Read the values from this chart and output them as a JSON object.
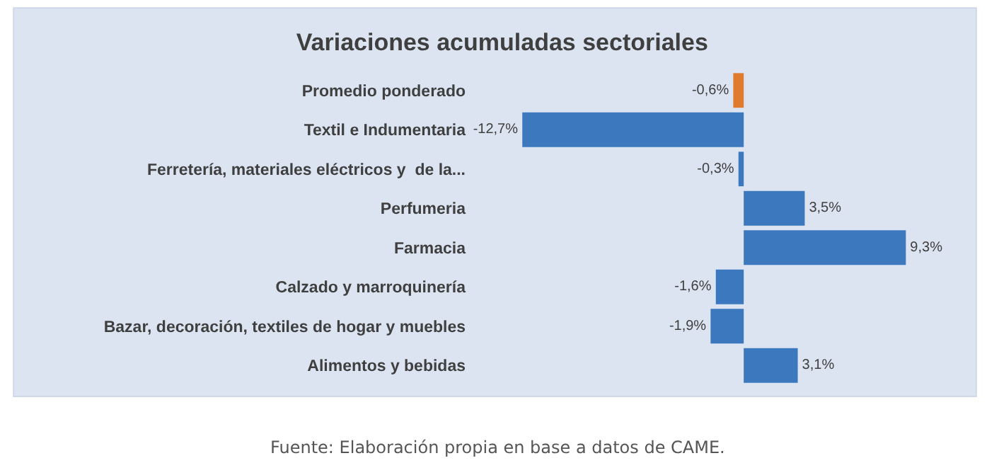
{
  "chart_data": {
    "type": "bar",
    "orientation": "horizontal",
    "title": "Variaciones acumuladas sectoriales",
    "categories": [
      "Promedio ponderado",
      "Textil e Indumentaria",
      "Ferretería, materiales eléctricos y  de la...",
      "Perfumeria",
      "Farmacia",
      "Calzado y marroquinería",
      "Bazar, decoración, textiles de hogar y muebles",
      "Alimentos y bebidas"
    ],
    "values": [
      -0.6,
      -12.7,
      -0.3,
      3.5,
      9.3,
      -1.6,
      -1.9,
      3.1
    ],
    "value_labels": [
      "-0,6%",
      "-12,7%",
      "-0,3%",
      "3,5%",
      "9,3%",
      "-1,6%",
      "-1,9%",
      "3,1%"
    ],
    "colors": [
      "#e07a2c",
      "#3b78be",
      "#3b78be",
      "#3b78be",
      "#3b78be",
      "#3b78be",
      "#3b78be",
      "#3b78be"
    ],
    "annotations": [
      "Fuente: Elaboración propia en base a datos de CAME."
    ]
  }
}
